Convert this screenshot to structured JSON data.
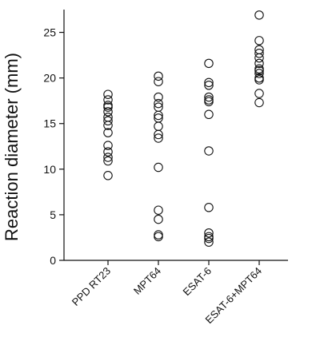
{
  "chart_data": {
    "type": "scatter",
    "title": "",
    "xlabel": "",
    "ylabel": "Reaction diameter (mm)",
    "ylim": [
      0,
      27.5
    ],
    "yticks": [
      0,
      5,
      10,
      15,
      20,
      25
    ],
    "categories": [
      "PPD RT23",
      "MPT64",
      "ESAT-6",
      "ESAT-6+MPT64"
    ],
    "grid": false,
    "points": [
      [
        18.2,
        17.6,
        17.0,
        16.8,
        16.3,
        15.7,
        15.3,
        14.8,
        14.0,
        12.6,
        11.9,
        11.3,
        10.9,
        9.3
      ],
      [
        20.2,
        19.6,
        17.9,
        17.2,
        16.8,
        15.9,
        15.6,
        14.7,
        13.8,
        13.4,
        10.2,
        5.5,
        4.5,
        2.8,
        2.6
      ],
      [
        21.6,
        19.5,
        19.2,
        17.9,
        17.6,
        17.4,
        16.0,
        12.0,
        5.8,
        3.0,
        2.6,
        2.4,
        2.0
      ],
      [
        26.9,
        24.1,
        23.1,
        22.7,
        22.2,
        21.6,
        21.0,
        20.8,
        20.5,
        20.0,
        19.8,
        18.3,
        17.3
      ]
    ]
  }
}
